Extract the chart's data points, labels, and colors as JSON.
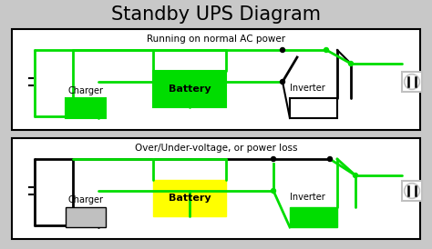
{
  "title": "Standby UPS Diagram",
  "title_fontsize": 16,
  "bg_color": "#c8c8c8",
  "green": "#00dd00",
  "yellow": "#ffff00",
  "black": "#000000",
  "white": "#ffffff",
  "gray": "#c0c0c0",
  "diagram1_label": "Running on normal AC power",
  "diagram2_label": "Over/Under-voltage, or power loss",
  "charger_label": "Charger",
  "battery_label": "Battery",
  "inverter_label": "Inverter"
}
